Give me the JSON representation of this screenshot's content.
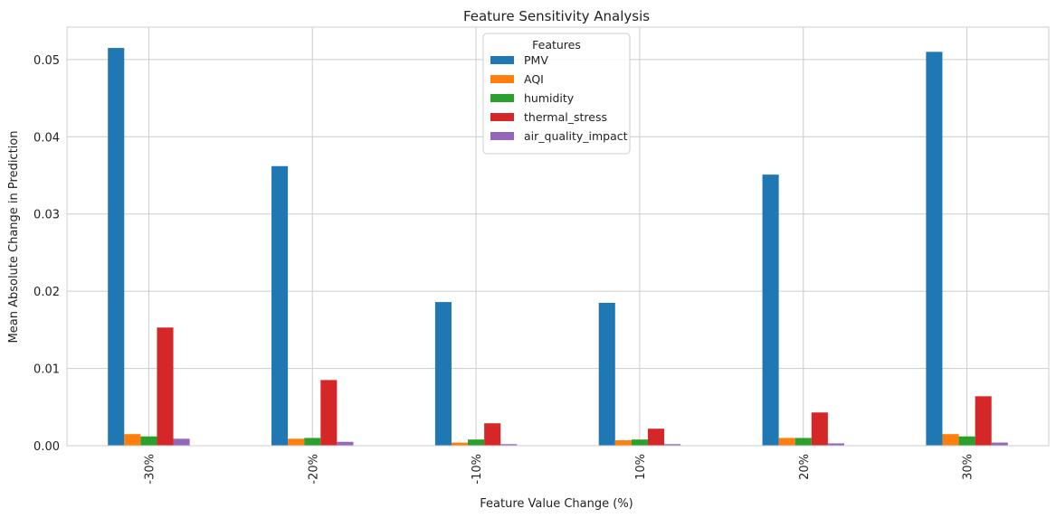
{
  "chart_data": {
    "type": "bar",
    "title": "Feature Sensitivity Analysis",
    "xlabel": "Feature Value Change (%)",
    "ylabel": "Mean Absolute Change in Prediction",
    "categories": [
      "-30%",
      "-20%",
      "-10%",
      "10%",
      "20%",
      "30%"
    ],
    "ylim": [
      0,
      0.0542
    ],
    "yticks": [
      "0.00",
      "0.01",
      "0.02",
      "0.03",
      "0.04",
      "0.05"
    ],
    "ytick_values": [
      0,
      0.01,
      0.02,
      0.03,
      0.04,
      0.05
    ],
    "grid": true,
    "legend": {
      "title": "Features",
      "placement": "top-center"
    },
    "series": [
      {
        "name": "PMV",
        "color": "#1f77b4",
        "values": [
          0.0515,
          0.0362,
          0.0186,
          0.0185,
          0.0351,
          0.051
        ]
      },
      {
        "name": "AQI",
        "color": "#ff7f0e",
        "values": [
          0.0015,
          0.0009,
          0.0004,
          0.0007,
          0.001,
          0.0015
        ]
      },
      {
        "name": "humidity",
        "color": "#2ca02c",
        "values": [
          0.0012,
          0.001,
          0.0008,
          0.0008,
          0.001,
          0.0012
        ]
      },
      {
        "name": "thermal_stress",
        "color": "#d62728",
        "values": [
          0.0153,
          0.0085,
          0.0029,
          0.0022,
          0.0043,
          0.0064
        ]
      },
      {
        "name": "air_quality_impact",
        "color": "#9467bd",
        "values": [
          0.0009,
          0.0005,
          0.0002,
          0.0002,
          0.0003,
          0.0004
        ]
      }
    ]
  }
}
